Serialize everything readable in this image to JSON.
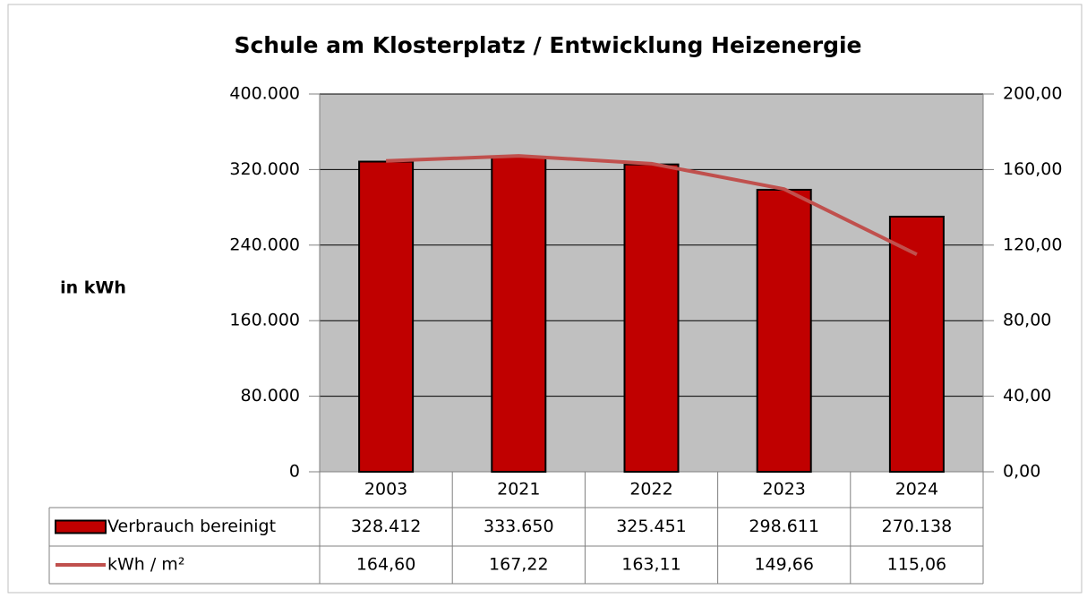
{
  "chart_data": {
    "type": "bar",
    "title": "Schule am Klosterplatz / Entwicklung Heizenergie",
    "y_label": "in kWh",
    "categories": [
      "2003",
      "2021",
      "2022",
      "2023",
      "2024"
    ],
    "series": [
      {
        "name": "Verbrauch bereinigt",
        "type": "bar",
        "color": "#c00000",
        "values": [
          328412,
          333650,
          325451,
          298611,
          270138
        ],
        "value_labels": [
          "328.412",
          "333.650",
          "325.451",
          "298.611",
          "270.138"
        ]
      },
      {
        "name": "kWh / m²",
        "type": "line",
        "axis": "y2",
        "color": "#c0504d",
        "values": [
          164.6,
          167.22,
          163.11,
          149.66,
          115.06
        ],
        "value_labels": [
          "164,60",
          "167,22",
          "163,11",
          "149,66",
          "115,06"
        ]
      }
    ],
    "ylim": [
      0,
      400000
    ],
    "yticks": [
      0,
      {
        "value": 80000,
        "label": "80.000"
      },
      {
        "value": 160000,
        "label": "160.000"
      },
      {
        "value": 240000,
        "label": "240.000"
      },
      {
        "value": 320000,
        "label": "320.000"
      },
      {
        "value": 400000,
        "label": "400.000"
      }
    ],
    "y2lim": [
      0,
      200
    ],
    "y2ticks": [
      {
        "value": 0,
        "label": "0,00"
      },
      {
        "value": 40,
        "label": "40,00"
      },
      {
        "value": 80,
        "label": "80,00"
      },
      {
        "value": 120,
        "label": "120,00"
      },
      {
        "value": 160,
        "label": "160,00"
      },
      {
        "value": 200,
        "label": "200,00"
      }
    ],
    "grid": true,
    "plot_background": "#c0c0c0"
  }
}
